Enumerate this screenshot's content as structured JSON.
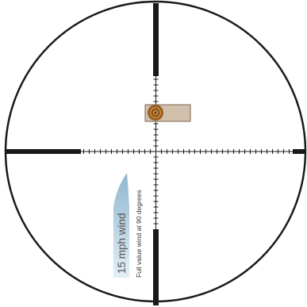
{
  "colors": {
    "reticle": "#1a1a1a",
    "background": "#ffffff",
    "target_fill": "#d2c0ac",
    "target_stroke": "#7a6654",
    "bullet_outer": "#9a5e23",
    "bullet_inner": "#c98a3c",
    "bullet_core": "#6b3e16",
    "arrow_light": "#e3eff6",
    "arrow_dark": "#8fb6ce",
    "wind_text": "#555555"
  },
  "wind": {
    "label": "15 mph wind",
    "note": "Full value wind at 90 degrees"
  },
  "icons": {
    "wind_arrow": "wind-direction-arrow",
    "bullet_impact": "bullet-impact-icon"
  }
}
